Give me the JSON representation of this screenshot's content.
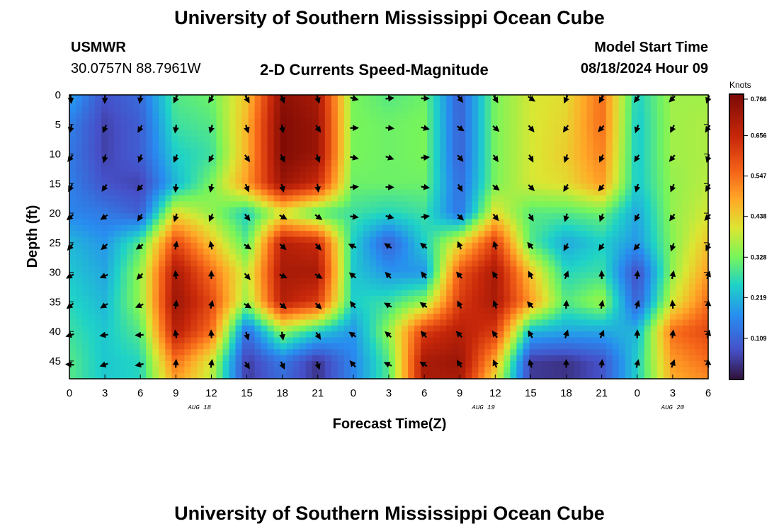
{
  "header": {
    "title": "University of Southern Mississippi Ocean Cube",
    "station": "USMWR",
    "coords": "30.0757N  88.7961W",
    "subtitle": "2-D Currents Speed-Magnitude",
    "model_label": "Model Start Time",
    "model_time": "08/18/2024 Hour 09"
  },
  "footer": {
    "title": "University of Southern Mississippi Ocean Cube"
  },
  "chart_data": {
    "type": "heatmap",
    "title": "2-D Currents Speed-Magnitude",
    "xlabel": "Forecast Time(Z)",
    "ylabel": "Depth (ft)",
    "x_hours_from_start": [
      0,
      54
    ],
    "x_tick_labels": [
      "0",
      "3",
      "6",
      "9",
      "12",
      "15",
      "18",
      "21",
      "0",
      "3",
      "6",
      "9",
      "12",
      "15",
      "18",
      "21",
      "0",
      "3",
      "6"
    ],
    "date_labels": [
      {
        "label": "AUG 18",
        "hour": 11
      },
      {
        "label": "AUG 19",
        "hour": 35
      },
      {
        "label": "AUG 20",
        "hour": 51
      }
    ],
    "depth_range_ft": [
      0,
      48
    ],
    "y_ticks": [
      0,
      5,
      10,
      15,
      20,
      25,
      30,
      35,
      40,
      45
    ],
    "colorbar": {
      "unit": "Knots",
      "range": [
        0,
        0.766
      ],
      "tick_values": [
        0.766,
        0.656,
        0.547,
        0.438,
        0.328,
        0.219,
        0.109
      ],
      "tick_labels": [
        "0.766",
        "0.656",
        "0.547",
        "0.438",
        "0.328",
        "0.219",
        "0.109"
      ]
    },
    "speed_grid_depths_ft": [
      0,
      5,
      10,
      15,
      20,
      25,
      30,
      35,
      40,
      45,
      48
    ],
    "speed_grid_hours": [
      0,
      3,
      6,
      9,
      12,
      15,
      18,
      21,
      24,
      27,
      30,
      33,
      36,
      39,
      42,
      45,
      48,
      51,
      54
    ],
    "speed_knots": [
      [
        0.2,
        0.08,
        0.12,
        0.3,
        0.32,
        0.45,
        0.74,
        0.7,
        0.33,
        0.3,
        0.32,
        0.1,
        0.33,
        0.4,
        0.42,
        0.55,
        0.25,
        0.36,
        0.36
      ],
      [
        0.15,
        0.06,
        0.1,
        0.28,
        0.3,
        0.47,
        0.76,
        0.72,
        0.33,
        0.32,
        0.33,
        0.1,
        0.33,
        0.4,
        0.43,
        0.55,
        0.24,
        0.36,
        0.37
      ],
      [
        0.14,
        0.06,
        0.1,
        0.25,
        0.28,
        0.47,
        0.76,
        0.72,
        0.33,
        0.32,
        0.33,
        0.1,
        0.33,
        0.4,
        0.44,
        0.53,
        0.24,
        0.36,
        0.37
      ],
      [
        0.15,
        0.08,
        0.06,
        0.22,
        0.33,
        0.5,
        0.72,
        0.65,
        0.32,
        0.32,
        0.32,
        0.12,
        0.33,
        0.4,
        0.42,
        0.5,
        0.24,
        0.35,
        0.38
      ],
      [
        0.16,
        0.14,
        0.1,
        0.42,
        0.35,
        0.25,
        0.4,
        0.3,
        0.28,
        0.26,
        0.28,
        0.13,
        0.42,
        0.3,
        0.3,
        0.32,
        0.2,
        0.35,
        0.4
      ],
      [
        0.22,
        0.18,
        0.3,
        0.6,
        0.45,
        0.3,
        0.68,
        0.65,
        0.25,
        0.1,
        0.25,
        0.42,
        0.62,
        0.3,
        0.2,
        0.25,
        0.18,
        0.34,
        0.45
      ],
      [
        0.24,
        0.2,
        0.35,
        0.7,
        0.55,
        0.38,
        0.7,
        0.7,
        0.24,
        0.18,
        0.18,
        0.58,
        0.7,
        0.45,
        0.26,
        0.28,
        0.07,
        0.35,
        0.5
      ],
      [
        0.26,
        0.22,
        0.35,
        0.72,
        0.6,
        0.35,
        0.68,
        0.62,
        0.25,
        0.28,
        0.35,
        0.62,
        0.7,
        0.5,
        0.3,
        0.36,
        0.1,
        0.4,
        0.55
      ],
      [
        0.28,
        0.24,
        0.3,
        0.68,
        0.55,
        0.12,
        0.35,
        0.25,
        0.18,
        0.35,
        0.62,
        0.68,
        0.62,
        0.22,
        0.2,
        0.2,
        0.22,
        0.55,
        0.6
      ],
      [
        0.3,
        0.24,
        0.26,
        0.55,
        0.4,
        0.05,
        0.14,
        0.04,
        0.16,
        0.3,
        0.7,
        0.72,
        0.48,
        0.05,
        0.04,
        0.08,
        0.25,
        0.5,
        0.55
      ],
      [
        0.3,
        0.24,
        0.26,
        0.5,
        0.38,
        0.05,
        0.12,
        0.04,
        0.16,
        0.3,
        0.7,
        0.7,
        0.42,
        0.05,
        0.04,
        0.08,
        0.25,
        0.48,
        0.52
      ]
    ],
    "vectors_note": "black arrows indicate current direction at each 3-hour / 5-ft grid point"
  }
}
